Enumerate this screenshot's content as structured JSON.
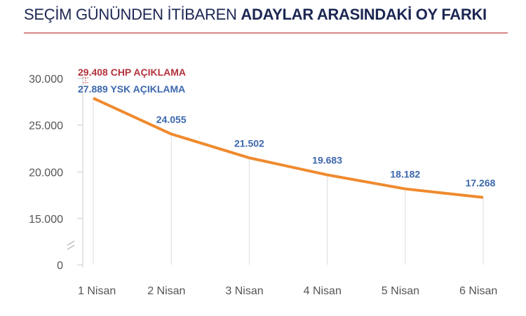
{
  "title": {
    "light": "SEÇİM GÜNÜNDEN İTİBAREN",
    "bold": "ADAYLAR ARASINDAKİ OY FARKI"
  },
  "chart_data": {
    "type": "line",
    "title": "SEÇİM GÜNÜNDEN İTİBAREN ADAYLAR ARASINDAKİ OY FARKI",
    "categories": [
      "1 Nisan",
      "2 Nisan",
      "3 Nisan",
      "4 Nisan",
      "5 Nisan",
      "6 Nisan"
    ],
    "values": [
      27889,
      24055,
      21502,
      19683,
      18182,
      17268
    ],
    "data_labels": [
      "27.889 YSK AÇIKLAMA",
      "24.055",
      "21.502",
      "19.683",
      "18.182",
      "17.268"
    ],
    "annotation": {
      "value": 29408,
      "label": "29.408 CHP AÇIKLAMA"
    },
    "yticks": [
      {
        "v": 30000,
        "t": "30.000"
      },
      {
        "v": 25000,
        "t": "25.000"
      },
      {
        "v": 20000,
        "t": "20.000"
      },
      {
        "v": 15000,
        "t": "15.000"
      },
      {
        "v": 0,
        "t": "0"
      }
    ],
    "ylim": [
      0,
      30000
    ],
    "axis_break": true,
    "colors": {
      "line": "#ef8a2f",
      "label": "#3c68ad",
      "annotation": "#b3323c"
    }
  }
}
